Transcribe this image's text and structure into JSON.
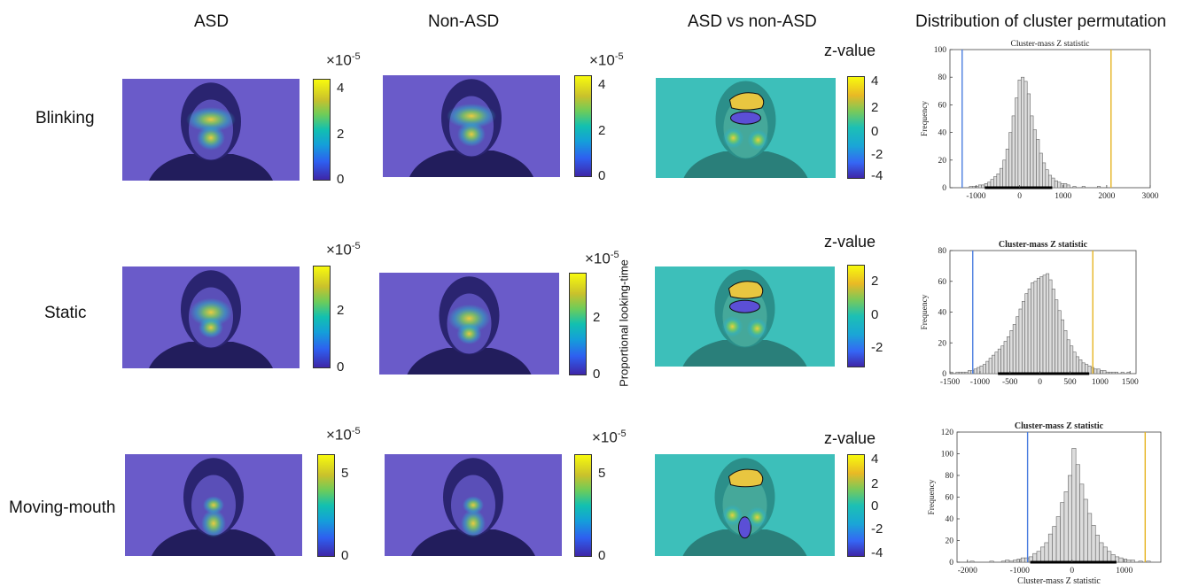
{
  "columns": [
    "ASD",
    "Non-ASD",
    "ASD vs non-ASD",
    "Distribution of cluster permutation"
  ],
  "rows": [
    "Blinking",
    "Static",
    "Moving-mouth"
  ],
  "colorbar_exponent": "×10",
  "colorbar_exponent_power": "-5",
  "zvalue_label": "z-value",
  "proportional_label": "Proportional looking-time",
  "colors": {
    "heat_bg": "#6a5bc9",
    "diff_bg": "#3dbfba",
    "bar_fill": "#dcdcdc",
    "bar_edge": "#666666",
    "line_negative": "#4a7de0",
    "line_positive": "#e6b422"
  },
  "colorbars": [
    {
      "ticks": [
        "4",
        "2",
        "0"
      ]
    },
    {
      "ticks": [
        "4",
        "2",
        "0"
      ]
    },
    {
      "ticks": [
        "4",
        "2",
        "0",
        "-2",
        "-4"
      ]
    },
    {
      "ticks": [
        "2",
        "0"
      ]
    },
    {
      "ticks": [
        "2",
        "0"
      ]
    },
    {
      "ticks": [
        "2",
        "0",
        "-2"
      ]
    },
    {
      "ticks": [
        "5",
        "0"
      ]
    },
    {
      "ticks": [
        "5",
        "0"
      ]
    },
    {
      "ticks": [
        "4",
        "2",
        "0",
        "-2",
        "-4"
      ]
    }
  ],
  "chart_data": [
    {
      "type": "bar",
      "title": "Cluster-mass Z statistic",
      "xlabel": "",
      "ylabel": "Frequency",
      "xlim": [
        -1600,
        3000
      ],
      "ylim": [
        0,
        100
      ],
      "xticks": [
        -1000,
        0,
        1000,
        2000,
        3000
      ],
      "yticks": [
        0,
        20,
        40,
        60,
        80,
        100
      ],
      "bin_width": 70,
      "x": [
        -1120,
        -1050,
        -980,
        -910,
        -840,
        -770,
        -700,
        -630,
        -560,
        -490,
        -420,
        -350,
        -280,
        -210,
        -140,
        -70,
        0,
        70,
        140,
        210,
        280,
        350,
        420,
        490,
        560,
        630,
        700,
        770,
        840,
        910,
        980,
        1050,
        1120,
        1260,
        1470,
        1820
      ],
      "values": [
        1,
        1,
        1,
        2,
        2,
        3,
        4,
        6,
        8,
        10,
        14,
        20,
        28,
        40,
        52,
        65,
        78,
        80,
        77,
        68,
        52,
        42,
        35,
        25,
        18,
        13,
        9,
        7,
        5,
        4,
        3,
        3,
        2,
        1,
        1,
        1
      ],
      "critical_lines": [
        -1320,
        2100
      ],
      "significance_range": [
        -800,
        750
      ]
    },
    {
      "type": "bar",
      "title": "Cluster-mass Z statistic",
      "xlabel": "",
      "ylabel": "Frequency",
      "xlim": [
        -1500,
        1600
      ],
      "ylim": [
        0,
        80
      ],
      "xticks": [
        -1500,
        -1000,
        -500,
        0,
        500,
        1000,
        1500
      ],
      "yticks": [
        0,
        20,
        40,
        60,
        80
      ],
      "bin_width": 50,
      "x": [
        -1475,
        -1425,
        -1375,
        -1325,
        -1275,
        -1225,
        -1175,
        -1125,
        -1075,
        -1025,
        -975,
        -925,
        -875,
        -825,
        -775,
        -725,
        -675,
        -625,
        -575,
        -525,
        -475,
        -425,
        -375,
        -325,
        -275,
        -225,
        -175,
        -125,
        -75,
        -25,
        25,
        75,
        125,
        175,
        225,
        275,
        325,
        375,
        425,
        475,
        525,
        575,
        625,
        675,
        725,
        775,
        825,
        875,
        925,
        975,
        1025,
        1075,
        1125,
        1175,
        1225,
        1275,
        1325,
        1375,
        1425,
        1475
      ],
      "values": [
        1,
        0,
        1,
        1,
        1,
        1,
        2,
        2,
        3,
        4,
        5,
        6,
        8,
        10,
        12,
        14,
        16,
        18,
        21,
        24,
        28,
        32,
        37,
        42,
        47,
        52,
        55,
        59,
        60,
        62,
        63,
        64,
        65,
        61,
        55,
        48,
        41,
        35,
        28,
        22,
        18,
        14,
        11,
        9,
        7,
        6,
        5,
        4,
        3,
        3,
        2,
        2,
        1,
        1,
        1,
        1,
        0,
        1,
        0,
        1
      ],
      "critical_lines": [
        -1120,
        880
      ],
      "significance_range": [
        -700,
        820
      ]
    },
    {
      "type": "bar",
      "title": "Cluster-mass Z statistic",
      "xlabel": "Cluster-mass Z statistic",
      "ylabel": "Frequency",
      "xlim": [
        -2200,
        1700
      ],
      "ylim": [
        0,
        120
      ],
      "xticks": [
        -2000,
        -1000,
        0,
        1000
      ],
      "yticks": [
        0,
        20,
        40,
        60,
        80,
        100,
        120
      ],
      "bin_width": 75,
      "x": [
        -1912,
        -1537,
        -1312,
        -1237,
        -1162,
        -1087,
        -1012,
        -937,
        -862,
        -787,
        -712,
        -637,
        -562,
        -487,
        -412,
        -337,
        -262,
        -187,
        -112,
        -37,
        37,
        112,
        187,
        262,
        337,
        412,
        487,
        562,
        637,
        712,
        787,
        862,
        937,
        1012,
        1087,
        1162,
        1312,
        1462
      ],
      "values": [
        1,
        1,
        1,
        2,
        1,
        2,
        3,
        4,
        4,
        5,
        8,
        10,
        14,
        18,
        26,
        33,
        42,
        55,
        65,
        80,
        105,
        90,
        72,
        58,
        45,
        34,
        25,
        18,
        14,
        10,
        7,
        5,
        4,
        3,
        2,
        2,
        1,
        1
      ],
      "critical_lines": [
        -850,
        1400
      ],
      "significance_range": [
        -800,
        850
      ]
    }
  ]
}
